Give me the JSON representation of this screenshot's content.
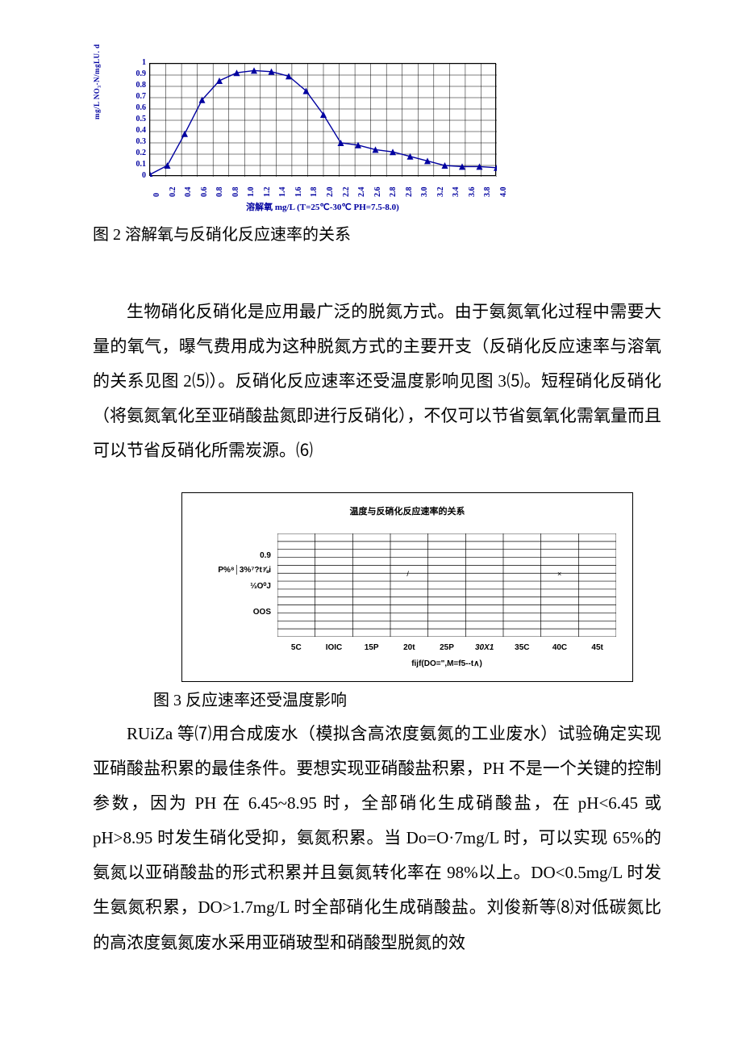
{
  "fig1": {
    "caption": "图 2 溶解氧与反硝化反应速率的关系",
    "ylabel": "mg/L NO₃-N/mgLU. d",
    "xaxis_label": "溶解氧 mg/L  (T=25℃-30℃  PH=7.5-8.0)",
    "yticks": [
      "0",
      "0.1",
      "0.2",
      "0.3",
      "0.4",
      "0.5",
      "0.6",
      "0.7",
      "0.8",
      "0.9",
      "1"
    ],
    "xticks": [
      "0",
      "0.2",
      "0.4",
      "0.6",
      "0.8",
      "0.8",
      "1.0",
      "1.2",
      "1.4",
      "1.6",
      "1.8",
      "2.0",
      "2.2",
      "2.4",
      "2.6",
      "2.8",
      "2.8",
      "3.0",
      "3.2",
      "3.4",
      "3.6",
      "3.8",
      "4.0"
    ],
    "ylim": [
      0,
      1
    ],
    "xlim": [
      0,
      4.0
    ],
    "series_color": "#0000a0",
    "grid_color": "#000000",
    "background": "#ffffff",
    "points_x": [
      0,
      0.2,
      0.4,
      0.6,
      0.8,
      1.0,
      1.2,
      1.4,
      1.6,
      1.8,
      2.0,
      2.2,
      2.4,
      2.6,
      2.8,
      3.0,
      3.2,
      3.4,
      3.6,
      3.8,
      4.0
    ],
    "points_y": [
      0.02,
      0.1,
      0.38,
      0.68,
      0.85,
      0.92,
      0.94,
      0.93,
      0.89,
      0.76,
      0.55,
      0.3,
      0.28,
      0.24,
      0.22,
      0.18,
      0.14,
      0.1,
      0.09,
      0.09,
      0.08
    ]
  },
  "paragraph1": "生物硝化反硝化是应用最广泛的脱氮方式。由于氨氮氧化过程中需要大量的氧气，曝气费用成为这种脱氮方式的主要开支（反硝化反应速率与溶氧的关系见图 2⑸）。反硝化反应速率还受温度影响见图 3⑸。短程硝化反硝化（将氨氮氧化至亚硝酸盐氮即进行反硝化），不仅可以节省氨氧化需氧量而且可以节省反硝化所需炭源。⑹",
  "fig3": {
    "title": "温度与反硝化反应速率的关系",
    "caption": "图 3 反应速率还受温度影响",
    "yticks": [
      "0.9",
      "P%⁸│3%⁷?t⅞i",
      "⅓O⁰J",
      "OOS"
    ],
    "xticks": [
      "5C",
      "IOIC",
      "15P",
      "20t",
      "25P",
      "30X1",
      "35C",
      "40C",
      "45t"
    ],
    "xtick_italic_idx": 5,
    "xaxis_label": "fijf(DO=\",M=f5--t∧)",
    "grid_rows": 13,
    "grid_cols": 9,
    "marker1": "/",
    "marker1_pos": [
      3,
      5
    ],
    "marker2": "×",
    "marker2_pos": [
      7,
      5
    ],
    "grid_color": "#000000"
  },
  "paragraph2": "RUiZa 等⑺用合成废水（模拟含高浓度氨氮的工业废水）试验确定实现亚硝酸盐积累的最佳条件。要想实现亚硝酸盐积累，PH 不是一个关键的控制参数，因为 PH 在 6.45~8.95 时，全部硝化生成硝酸盐，在 pH<6.45 或 pH>8.95 时发生硝化受抑，氨氮积累。当 Do=O·7mg/L 时，可以实现 65%的氨氮以亚硝酸盐的形式积累并且氨氮转化率在 98%以上。DO<0.5mg/L 时发生氨氮积累，DO>1.7mg/L 时全部硝化生成硝酸盐。刘俊新等⑻对低碳氮比的高浓度氨氮废水采用亚硝玻型和硝酸型脱氮的效"
}
